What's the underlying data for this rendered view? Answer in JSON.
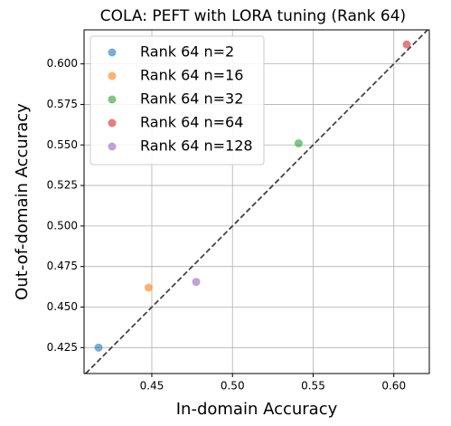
{
  "chart_data": {
    "type": "scatter",
    "title": "COLA: PEFT with LORA tuning (Rank 64)",
    "xlabel": "In-domain Accuracy",
    "ylabel": "Out-of-domain Accuracy",
    "series": [
      {
        "name": "Rank 64 n=2",
        "color": "#1f77b4",
        "x": [
          0.417
        ],
        "values": [
          0.425
        ]
      },
      {
        "name": "Rank 64 n=16",
        "color": "#ff7f0e",
        "x": [
          0.448
        ],
        "values": [
          0.462
        ]
      },
      {
        "name": "Rank 64 n=32",
        "color": "#2ca02c",
        "x": [
          0.541
        ],
        "values": [
          0.551
        ]
      },
      {
        "name": "Rank 64 n=64",
        "color": "#d62728",
        "x": [
          0.608
        ],
        "values": [
          0.612
        ]
      },
      {
        "name": "Rank 64 n=128",
        "color": "#9467bd",
        "x": [
          0.4775
        ],
        "values": [
          0.4655
        ]
      }
    ],
    "xlim": [
      0.408,
      0.622
    ],
    "ylim": [
      0.409,
      0.621
    ],
    "xticks": [
      {
        "value": 0.45,
        "label": "0.45"
      },
      {
        "value": 0.5,
        "label": "0.50"
      },
      {
        "value": 0.55,
        "label": "0.55"
      },
      {
        "value": 0.6,
        "label": "0.60"
      }
    ],
    "yticks": [
      {
        "value": 0.425,
        "label": "0.425"
      },
      {
        "value": 0.45,
        "label": "0.450"
      },
      {
        "value": 0.475,
        "label": "0.475"
      },
      {
        "value": 0.5,
        "label": "0.500"
      },
      {
        "value": 0.525,
        "label": "0.525"
      },
      {
        "value": 0.55,
        "label": "0.550"
      },
      {
        "value": 0.575,
        "label": "0.575"
      },
      {
        "value": 0.6,
        "label": "0.600"
      }
    ],
    "grid": true,
    "legend": "upper left"
  }
}
